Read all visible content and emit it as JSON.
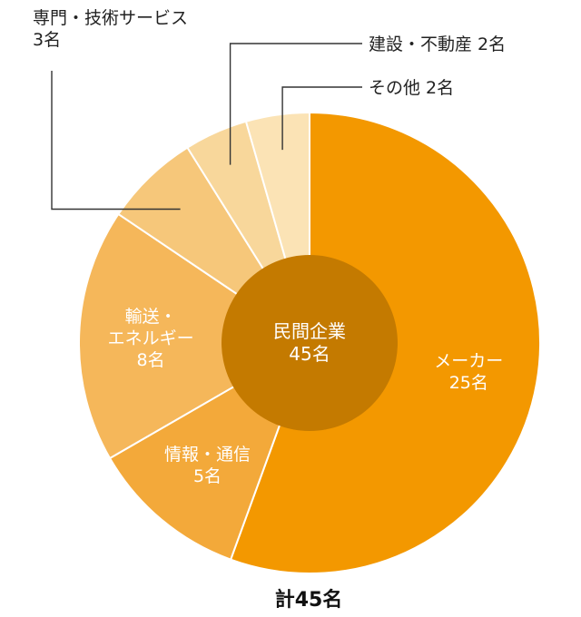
{
  "chart_data": {
    "type": "pie",
    "subtype": "donut",
    "center_label": [
      "民間企業",
      "45名"
    ],
    "total_label": "計45名",
    "colors": {
      "hole": "#C47A00",
      "slices": [
        "#F39800",
        "#F3A93A",
        "#F5B75A",
        "#F6C77A",
        "#F8D79B",
        "#FBE3B5"
      ]
    },
    "slices": [
      {
        "label": [
          "メーカー",
          "25名"
        ],
        "value": 25
      },
      {
        "label": [
          "情報・通信",
          "5名"
        ],
        "value": 5
      },
      {
        "label": [
          "輸送・",
          "エネルギー",
          "8名"
        ],
        "value": 8
      },
      {
        "label": [
          "専門・技術サービス",
          "3名"
        ],
        "value": 3
      },
      {
        "label": [
          "建設・不動産 2名"
        ],
        "value": 2
      },
      {
        "label": [
          "その他 2名"
        ],
        "value": 2
      }
    ]
  }
}
